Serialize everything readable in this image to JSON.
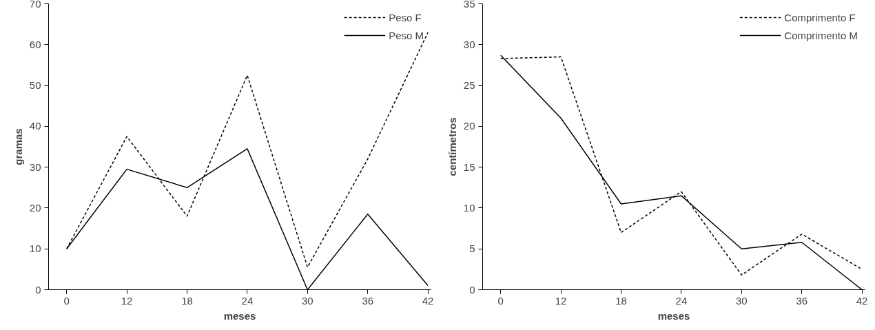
{
  "chart_data": [
    {
      "type": "line",
      "xlabel": "meses",
      "ylabel": "gramas",
      "categories": [
        "0",
        "12",
        "18",
        "24",
        "30",
        "36",
        "42"
      ],
      "ylim": [
        0,
        70
      ],
      "yticks": [
        0,
        10,
        20,
        30,
        40,
        50,
        60,
        70
      ],
      "grid": false,
      "legend": "top right",
      "marker": "none",
      "series": [
        {
          "name": "Peso F",
          "color": "#000000",
          "line_style": "dashed",
          "values": [
            10,
            37.5,
            18,
            52.5,
            5.5,
            32,
            63
          ]
        },
        {
          "name": "Peso M",
          "color": "#000000",
          "line_style": "solid",
          "values": [
            10,
            29.5,
            25,
            34.5,
            0,
            18.5,
            1
          ]
        }
      ]
    },
    {
      "type": "line",
      "xlabel": "meses",
      "ylabel": "centímetros",
      "categories": [
        "0",
        "12",
        "18",
        "24",
        "30",
        "36",
        "42"
      ],
      "ylim": [
        0,
        35
      ],
      "yticks": [
        0,
        5,
        10,
        15,
        20,
        25,
        30,
        35
      ],
      "grid": false,
      "legend": "top right",
      "marker": "none",
      "series": [
        {
          "name": "Comprimento F",
          "color": "#000000",
          "line_style": "dashed",
          "values": [
            28.3,
            28.5,
            7,
            12,
            1.8,
            6.8,
            2.5
          ]
        },
        {
          "name": "Comprimento M",
          "color": "#000000",
          "line_style": "solid",
          "values": [
            28.7,
            21,
            10.5,
            11.5,
            5,
            5.8,
            0
          ]
        }
      ]
    }
  ]
}
